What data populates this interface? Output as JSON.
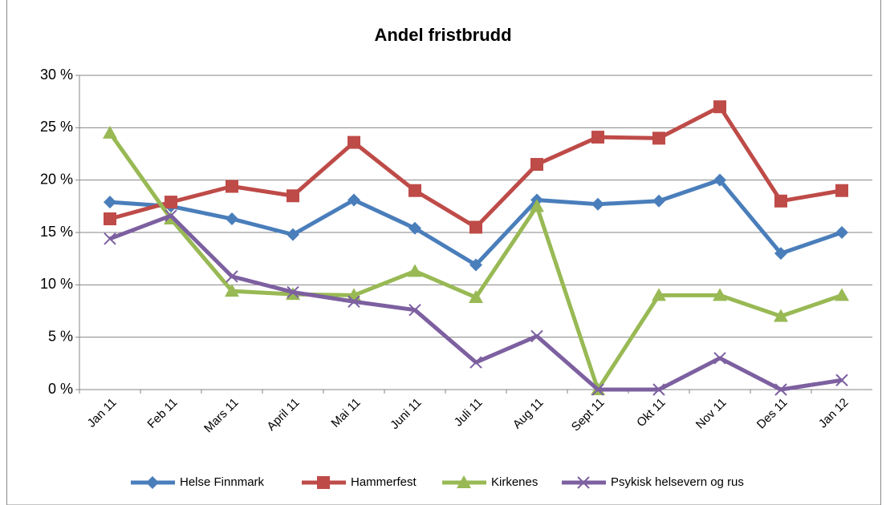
{
  "chart_data": {
    "type": "line",
    "title": "Andel fristbrudd",
    "categories": [
      "Jan 11",
      "Feb 11",
      "Mars 11",
      "April 11",
      "Mai 11",
      "Juni 11",
      "Juli 11",
      "Aug 11",
      "Sept 11",
      "Okt 11",
      "Nov 11",
      "Des 11",
      "Jan 12"
    ],
    "series": [
      {
        "name": "Helse Finnmark",
        "color": "#4a7ebb",
        "marker": "diamond",
        "values": [
          17.9,
          17.5,
          16.3,
          14.8,
          18.1,
          15.4,
          11.9,
          18.1,
          17.7,
          18.0,
          20.0,
          13.0,
          15.0
        ]
      },
      {
        "name": "Hammerfest",
        "color": "#be4b48",
        "marker": "square",
        "values": [
          16.3,
          17.9,
          19.4,
          18.5,
          23.6,
          19.0,
          15.5,
          21.5,
          24.1,
          24.0,
          27.0,
          18.0,
          19.0
        ]
      },
      {
        "name": "Kirkenes",
        "color": "#98b954",
        "marker": "triangle",
        "values": [
          24.5,
          16.3,
          9.4,
          9.1,
          9.0,
          11.3,
          8.8,
          17.5,
          0,
          9.0,
          9.0,
          7.0,
          9.0
        ]
      },
      {
        "name": "Psykisk helsevern og rus",
        "color": "#7d60a0",
        "marker": "x",
        "values": [
          14.4,
          16.6,
          10.8,
          9.3,
          8.4,
          7.6,
          2.6,
          5.1,
          0,
          0,
          3.0,
          0,
          0.9
        ]
      }
    ],
    "ylim": [
      0,
      30
    ],
    "yticks": [
      {
        "value": 0,
        "label": "0 %"
      },
      {
        "value": 5,
        "label": "5 %"
      },
      {
        "value": 10,
        "label": "10 %"
      },
      {
        "value": 15,
        "label": "15 %"
      },
      {
        "value": 20,
        "label": "20 %"
      },
      {
        "value": 25,
        "label": "25 %"
      },
      {
        "value": 30,
        "label": "30 %"
      }
    ],
    "grid": true,
    "legend": "bottom"
  }
}
